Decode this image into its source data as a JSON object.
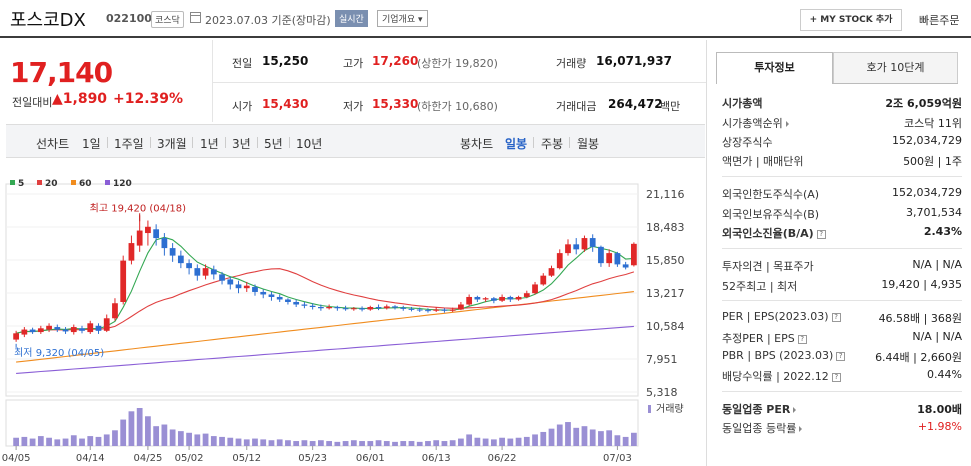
{
  "header": {
    "name": "포스코DX",
    "code": "022100",
    "market": "코스닥",
    "date": "2023.07.03 기준(장마감)",
    "realtime": "실시간",
    "company": "기업개요",
    "mystock": "+ MY STOCK 추가",
    "quick_order": "빠른주문"
  },
  "price": {
    "current": "17,140",
    "change_label": "전일대비",
    "change": "▲1,890",
    "change_pct": "+12.39%"
  },
  "quote": {
    "prev_label": "전일",
    "prev": "15,250",
    "high_label": "고가",
    "high": "17,260",
    "upper_limit": "(상한가 19,820)",
    "volume_label": "거래량",
    "volume": "16,071,937",
    "open_label": "시가",
    "open": "15,430",
    "low_label": "저가",
    "low": "15,330",
    "lower_limit": "(하한가 10,680)",
    "amount_label": "거래대금",
    "amount": "264,472",
    "amount_unit": "백만"
  },
  "toolbar": {
    "line_chart": "선차트",
    "periods": [
      "1일",
      "1주일",
      "3개월",
      "1년",
      "3년",
      "5년",
      "10년"
    ],
    "candle_chart": "봉차트",
    "candle_periods": [
      "일봉",
      "주봉",
      "월봉"
    ],
    "active_candle": "일봉"
  },
  "chart_data": {
    "type": "candlestick",
    "legend": [
      {
        "name": "5",
        "color": "#34a853"
      },
      {
        "name": "20",
        "color": "#e04040"
      },
      {
        "name": "60",
        "color": "#f08c1e"
      },
      {
        "name": "120",
        "color": "#8a5ed6"
      }
    ],
    "y_ticks": [
      "21,116",
      "18,483",
      "15,850",
      "13,217",
      "10,584",
      "7,951",
      "5,318"
    ],
    "x_ticks": [
      "04/05",
      "04/14",
      "04/25",
      "05/02",
      "05/12",
      "05/23",
      "06/01",
      "06/13",
      "06/22",
      "07/03"
    ],
    "high_note": "최고 19,420 (04/18)",
    "low_note": "최저 9,320 (04/05)",
    "volume_label": "거래량",
    "ylim": [
      5318,
      21116
    ],
    "candles": [
      [
        9500,
        10000,
        9320,
        10200
      ],
      [
        9900,
        10300,
        9700,
        10500
      ],
      [
        10300,
        10100,
        9950,
        10450
      ],
      [
        10100,
        10400,
        9950,
        10600
      ],
      [
        10300,
        10600,
        10100,
        10800
      ],
      [
        10500,
        10300,
        10100,
        10700
      ],
      [
        10300,
        10150,
        9950,
        10500
      ],
      [
        10100,
        10500,
        9900,
        10700
      ],
      [
        10400,
        10200,
        10000,
        10600
      ],
      [
        10100,
        10800,
        9950,
        11000
      ],
      [
        10600,
        10200,
        9950,
        10800
      ],
      [
        10200,
        11200,
        10100,
        11500
      ],
      [
        11200,
        12400,
        11000,
        12800
      ],
      [
        12500,
        15800,
        12300,
        16200
      ],
      [
        15800,
        17200,
        15500,
        17800
      ],
      [
        17000,
        18200,
        16500,
        19420
      ],
      [
        18000,
        18500,
        17000,
        19000
      ],
      [
        18300,
        17600,
        17000,
        18700
      ],
      [
        17600,
        16800,
        16200,
        18000
      ],
      [
        16800,
        16200,
        15700,
        17200
      ],
      [
        16200,
        15600,
        15200,
        16600
      ],
      [
        15600,
        15200,
        14700,
        15900
      ],
      [
        15200,
        14600,
        14200,
        15500
      ],
      [
        14600,
        15200,
        14300,
        15500
      ],
      [
        15100,
        14700,
        14300,
        15400
      ],
      [
        14700,
        14200,
        13900,
        14900
      ],
      [
        14300,
        13900,
        13500,
        14500
      ],
      [
        13900,
        13600,
        13200,
        14200
      ],
      [
        13600,
        13800,
        13300,
        14100
      ],
      [
        13700,
        13300,
        13000,
        13900
      ],
      [
        13300,
        13100,
        12800,
        13500
      ],
      [
        13100,
        12900,
        12600,
        13300
      ],
      [
        12900,
        12700,
        12500,
        13100
      ],
      [
        12700,
        12500,
        12300,
        12800
      ],
      [
        12500,
        12300,
        12100,
        12700
      ],
      [
        12300,
        12200,
        12000,
        12500
      ],
      [
        12200,
        12100,
        11900,
        12400
      ],
      [
        12100,
        12000,
        11800,
        12300
      ],
      [
        12000,
        12100,
        11900,
        12300
      ],
      [
        12100,
        12000,
        11800,
        12200
      ],
      [
        12000,
        11950,
        11800,
        12200
      ],
      [
        11950,
        12000,
        11800,
        12100
      ],
      [
        12000,
        11900,
        11750,
        12150
      ],
      [
        11900,
        12100,
        11800,
        12200
      ],
      [
        12100,
        12000,
        11850,
        12300
      ],
      [
        12000,
        12150,
        11900,
        12300
      ],
      [
        12150,
        12050,
        11900,
        12250
      ],
      [
        12050,
        11950,
        11800,
        12200
      ],
      [
        11950,
        11900,
        11750,
        12100
      ],
      [
        11900,
        11850,
        11700,
        12050
      ],
      [
        11850,
        11800,
        11650,
        12000
      ],
      [
        11800,
        11900,
        11700,
        12100
      ],
      [
        11900,
        11800,
        11650,
        12000
      ],
      [
        11800,
        11900,
        11700,
        12050
      ],
      [
        11900,
        12300,
        11850,
        12500
      ],
      [
        12300,
        12900,
        12200,
        13100
      ],
      [
        12900,
        12700,
        12500,
        13000
      ],
      [
        12700,
        12800,
        12500,
        12900
      ],
      [
        12800,
        12600,
        12400,
        12900
      ],
      [
        12600,
        12900,
        12500,
        13100
      ],
      [
        12900,
        12700,
        12500,
        13000
      ],
      [
        12700,
        12900,
        12600,
        13000
      ],
      [
        12900,
        13200,
        12800,
        13400
      ],
      [
        13200,
        13900,
        13100,
        14100
      ],
      [
        13900,
        14600,
        13800,
        14800
      ],
      [
        14600,
        15200,
        14500,
        15400
      ],
      [
        15200,
        16400,
        15100,
        16700
      ],
      [
        16400,
        17100,
        16200,
        17500
      ],
      [
        17100,
        16700,
        16300,
        17600
      ],
      [
        16700,
        17600,
        16500,
        17800
      ],
      [
        17600,
        16900,
        16500,
        17900
      ],
      [
        16900,
        15600,
        15300,
        17000
      ],
      [
        15600,
        16400,
        15300,
        16700
      ],
      [
        16400,
        15500,
        15300,
        16500
      ],
      [
        15500,
        15250,
        15100,
        15700
      ],
      [
        15430,
        17140,
        15330,
        17260
      ]
    ],
    "volume": [
      1,
      1.1,
      0.9,
      1.2,
      1,
      0.8,
      0.9,
      1.3,
      0.9,
      1.2,
      1.1,
      1.4,
      1.9,
      3.2,
      4.2,
      4.6,
      3.6,
      2.4,
      2.6,
      2.0,
      1.8,
      1.6,
      1.4,
      1.5,
      1.2,
      1.1,
      1.0,
      0.9,
      0.8,
      0.9,
      0.8,
      0.7,
      0.8,
      0.7,
      0.6,
      0.7,
      0.6,
      0.7,
      0.6,
      0.5,
      0.6,
      0.7,
      0.6,
      0.6,
      0.7,
      0.6,
      0.5,
      0.6,
      0.6,
      0.5,
      0.6,
      0.7,
      0.6,
      0.7,
      0.9,
      1.4,
      1.0,
      0.9,
      0.8,
      1.0,
      0.9,
      1.0,
      1.1,
      1.4,
      1.7,
      2.1,
      2.6,
      2.9,
      2.2,
      2.4,
      2.0,
      1.8,
      1.9,
      1.3,
      1.1,
      1.6
    ]
  },
  "right_panel": {
    "tab_info": "투자정보",
    "tab_quote": "호가 10단계",
    "market_cap_label": "시가총액",
    "market_cap": "2조 6,059억원",
    "market_cap_rank_label": "시가총액순위",
    "market_cap_rank": "코스닥 11위",
    "listed_shares_label": "상장주식수",
    "listed_shares": "152,034,729",
    "par_label": "액면가 | 매매단위",
    "par": "500원 | 1주",
    "foreign_limit_label": "외국인한도주식수(A)",
    "foreign_limit": "152,034,729",
    "foreign_hold_label": "외국인보유주식수(B)",
    "foreign_hold": "3,701,534",
    "foreign_ratio_label": "외국인소진율(B/A)",
    "foreign_ratio": "2.43%",
    "opinion_label": "투자의견 | 목표주가",
    "opinion": "N/A | N/A",
    "week52_label": "52주최고 | 최저",
    "week52": "19,420 | 4,935",
    "per_label": "PER | EPS(2023.03)",
    "per": "46.58배 | 368원",
    "est_per_label": "추정PER | EPS",
    "est_per": "N/A | N/A",
    "pbr_label": "PBR | BPS (2023.03)",
    "pbr": "6.44배 | 2,660원",
    "dividend_label": "배당수익률 | 2022.12",
    "dividend": "0.44%",
    "industry_per_label": "동일업종 PER",
    "industry_per": "18.00배",
    "industry_change_label": "동일업종 등락률",
    "industry_change": "+1.98%"
  }
}
